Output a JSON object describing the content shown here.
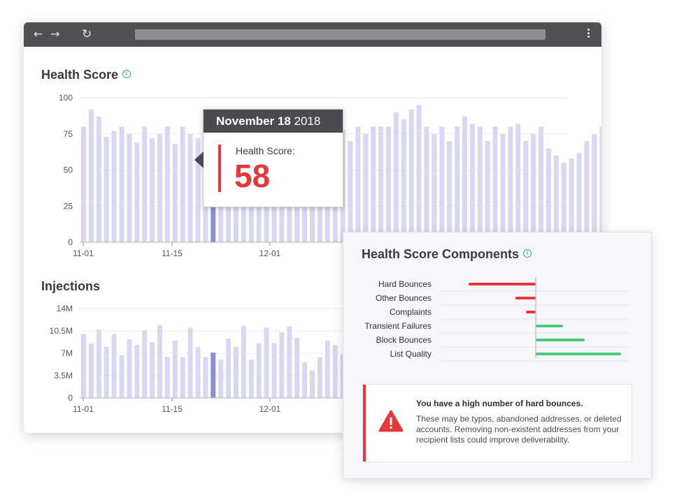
{
  "browser": {
    "icons": [
      "back-arrow-icon",
      "forward-arrow-icon",
      "reload-icon",
      "more-vert-icon"
    ]
  },
  "health": {
    "title": "Health Score",
    "y_ticks": [
      "100",
      "75",
      "50",
      "25",
      "0"
    ],
    "x_ticks": [
      "11-01",
      "11-15",
      "12-01"
    ],
    "colors": {
      "bar": "#d8d8f2",
      "highlight": "#8a8de2"
    },
    "values": [
      80,
      92,
      87,
      73,
      77,
      80,
      75,
      69,
      80,
      72,
      75,
      80,
      68,
      80,
      75,
      72,
      78,
      58,
      92,
      80,
      88,
      78,
      80,
      80,
      75,
      80,
      80,
      80,
      80,
      80,
      80,
      80,
      80,
      85,
      78,
      70,
      80,
      75,
      80,
      80,
      80,
      90,
      85,
      92,
      95,
      80,
      75,
      80,
      70,
      80,
      87,
      82,
      80,
      70,
      80,
      75,
      80,
      82,
      70,
      75,
      80,
      65,
      60,
      55,
      58,
      62,
      70,
      75,
      80,
      85,
      80,
      88,
      80,
      95,
      90,
      73
    ],
    "highlight_index": 17
  },
  "tooltip": {
    "date_bold": "November 18",
    "date_year": "2018",
    "label": "Health Score:",
    "value": "58"
  },
  "injections": {
    "title": "Injections",
    "y_ticks": [
      "14M",
      "10.5M",
      "7M",
      "3.5M",
      "0"
    ],
    "x_ticks": [
      "11-01",
      "11-15",
      "12-01"
    ],
    "values": [
      10,
      8.5,
      10.7,
      8,
      10,
      6.7,
      9.2,
      8.3,
      10.6,
      8.7,
      11.4,
      6.4,
      9,
      6.4,
      11,
      8,
      6.4,
      7.1,
      6,
      9.3,
      8,
      11.3,
      6,
      8.6,
      11,
      8.6,
      10.3,
      11.2,
      9.4,
      5.6,
      4.3,
      6.4,
      9,
      8.3,
      6.8,
      8,
      10.5,
      11.4,
      9.6,
      6.5,
      9,
      11.4
    ],
    "highlight_index": 17
  },
  "components": {
    "title": "Health Score Components",
    "rows": [
      {
        "label": "Hard Bounces",
        "value": -96,
        "color": "#e5383b"
      },
      {
        "label": "Other Bounces",
        "value": -29,
        "color": "#e5383b"
      },
      {
        "label": "Complaints",
        "value": -14,
        "color": "#e5383b"
      },
      {
        "label": "Transient Failures",
        "value": 39,
        "color": "#4cc97a"
      },
      {
        "label": "Block Bounces",
        "value": 70,
        "color": "#4cc97a"
      },
      {
        "label": "List Quality",
        "value": 122,
        "color": "#4cc97a"
      }
    ]
  },
  "alert": {
    "title": "You have a high number of hard bounces.",
    "body": "These may be typos, abandoned addresses, or deleted accounts. Removing non-existent addresses from your recipient lists could improve deliverability.",
    "icon": "warning-icon",
    "accent": "#e5383b"
  }
}
